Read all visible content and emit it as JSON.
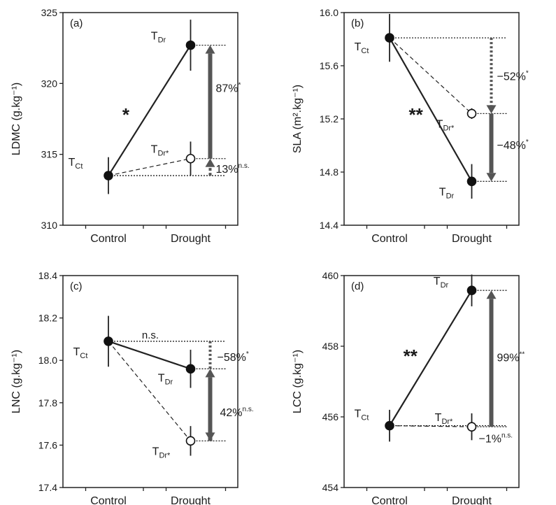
{
  "chart_data": [
    {
      "type": "line",
      "panel_label": "(a)",
      "ylabel": "LDMC (g.kg⁻¹)",
      "ylim": [
        310,
        325
      ],
      "yticks": [
        "310",
        "315",
        "320",
        "325"
      ],
      "categories": [
        "Control",
        "Drought"
      ],
      "points": [
        {
          "label_main": "T",
          "label_sub": "Ct",
          "x": "Control",
          "y": 313.5,
          "err": 1.3,
          "filled": true
        },
        {
          "label_main": "T",
          "label_sub": "Dr",
          "x": "Drought",
          "y": 322.7,
          "err": 1.8,
          "filled": true
        },
        {
          "label_main": "T",
          "label_sub": "Dr*",
          "x": "Drought",
          "y": 314.7,
          "err": 1.2,
          "filled": false
        }
      ],
      "annotations": {
        "slope_significance": "*",
        "upper_percent": "87%",
        "upper_sig": "*",
        "lower_percent": "13%",
        "lower_sig": "n.s."
      }
    },
    {
      "type": "line",
      "panel_label": "(b)",
      "ylabel": "SLA (m².kg⁻¹)",
      "ylim": [
        14.4,
        16.0
      ],
      "yticks": [
        "14.4",
        "14.8",
        "15.2",
        "15.6",
        "16.0"
      ],
      "categories": [
        "Control",
        "Drought"
      ],
      "points": [
        {
          "label_main": "T",
          "label_sub": "Ct",
          "x": "Control",
          "y": 15.81,
          "err": 0.18,
          "filled": true
        },
        {
          "label_main": "T",
          "label_sub": "Dr",
          "x": "Drought",
          "y": 14.73,
          "err": 0.13,
          "filled": true
        },
        {
          "label_main": "T",
          "label_sub": "Dr*",
          "x": "Drought",
          "y": 15.24,
          "err": 0.04,
          "filled": false
        }
      ],
      "annotations": {
        "slope_significance": "**",
        "upper_percent": "−52%",
        "upper_sig": "*",
        "lower_percent": "−48%",
        "lower_sig": "*"
      }
    },
    {
      "type": "line",
      "panel_label": "(c)",
      "ylabel": "LNC (g.kg⁻¹)",
      "ylim": [
        17.4,
        18.4
      ],
      "yticks": [
        "17.4",
        "17.6",
        "17.8",
        "18.0",
        "18.2",
        "18.4"
      ],
      "categories": [
        "Control",
        "Drought"
      ],
      "points": [
        {
          "label_main": "T",
          "label_sub": "Ct",
          "x": "Control",
          "y": 18.09,
          "err": 0.12,
          "filled": true
        },
        {
          "label_main": "T",
          "label_sub": "Dr",
          "x": "Drought",
          "y": 17.96,
          "err": 0.09,
          "filled": true
        },
        {
          "label_main": "T",
          "label_sub": "Dr*",
          "x": "Drought",
          "y": 17.62,
          "err": 0.07,
          "filled": false
        }
      ],
      "annotations": {
        "slope_significance": "n.s.",
        "upper_percent": "−58%",
        "upper_sig": "*",
        "lower_percent": "42%",
        "lower_sig": "n.s."
      }
    },
    {
      "type": "line",
      "panel_label": "(d)",
      "ylabel": "LCC (g.kg⁻¹)",
      "ylim": [
        454,
        460
      ],
      "yticks": [
        "454",
        "456",
        "458",
        "460"
      ],
      "categories": [
        "Control",
        "Drought"
      ],
      "points": [
        {
          "label_main": "T",
          "label_sub": "Ct",
          "x": "Control",
          "y": 455.75,
          "err": 0.45,
          "filled": true
        },
        {
          "label_main": "T",
          "label_sub": "Dr",
          "x": "Drought",
          "y": 459.58,
          "err": 0.45,
          "filled": true
        },
        {
          "label_main": "T",
          "label_sub": "Dr*",
          "x": "Drought",
          "y": 455.72,
          "err": 0.38,
          "filled": false
        }
      ],
      "annotations": {
        "slope_significance": "**",
        "upper_percent": "99%",
        "upper_sig": "**",
        "lower_percent": "−1%",
        "lower_sig": "n.s."
      }
    }
  ]
}
